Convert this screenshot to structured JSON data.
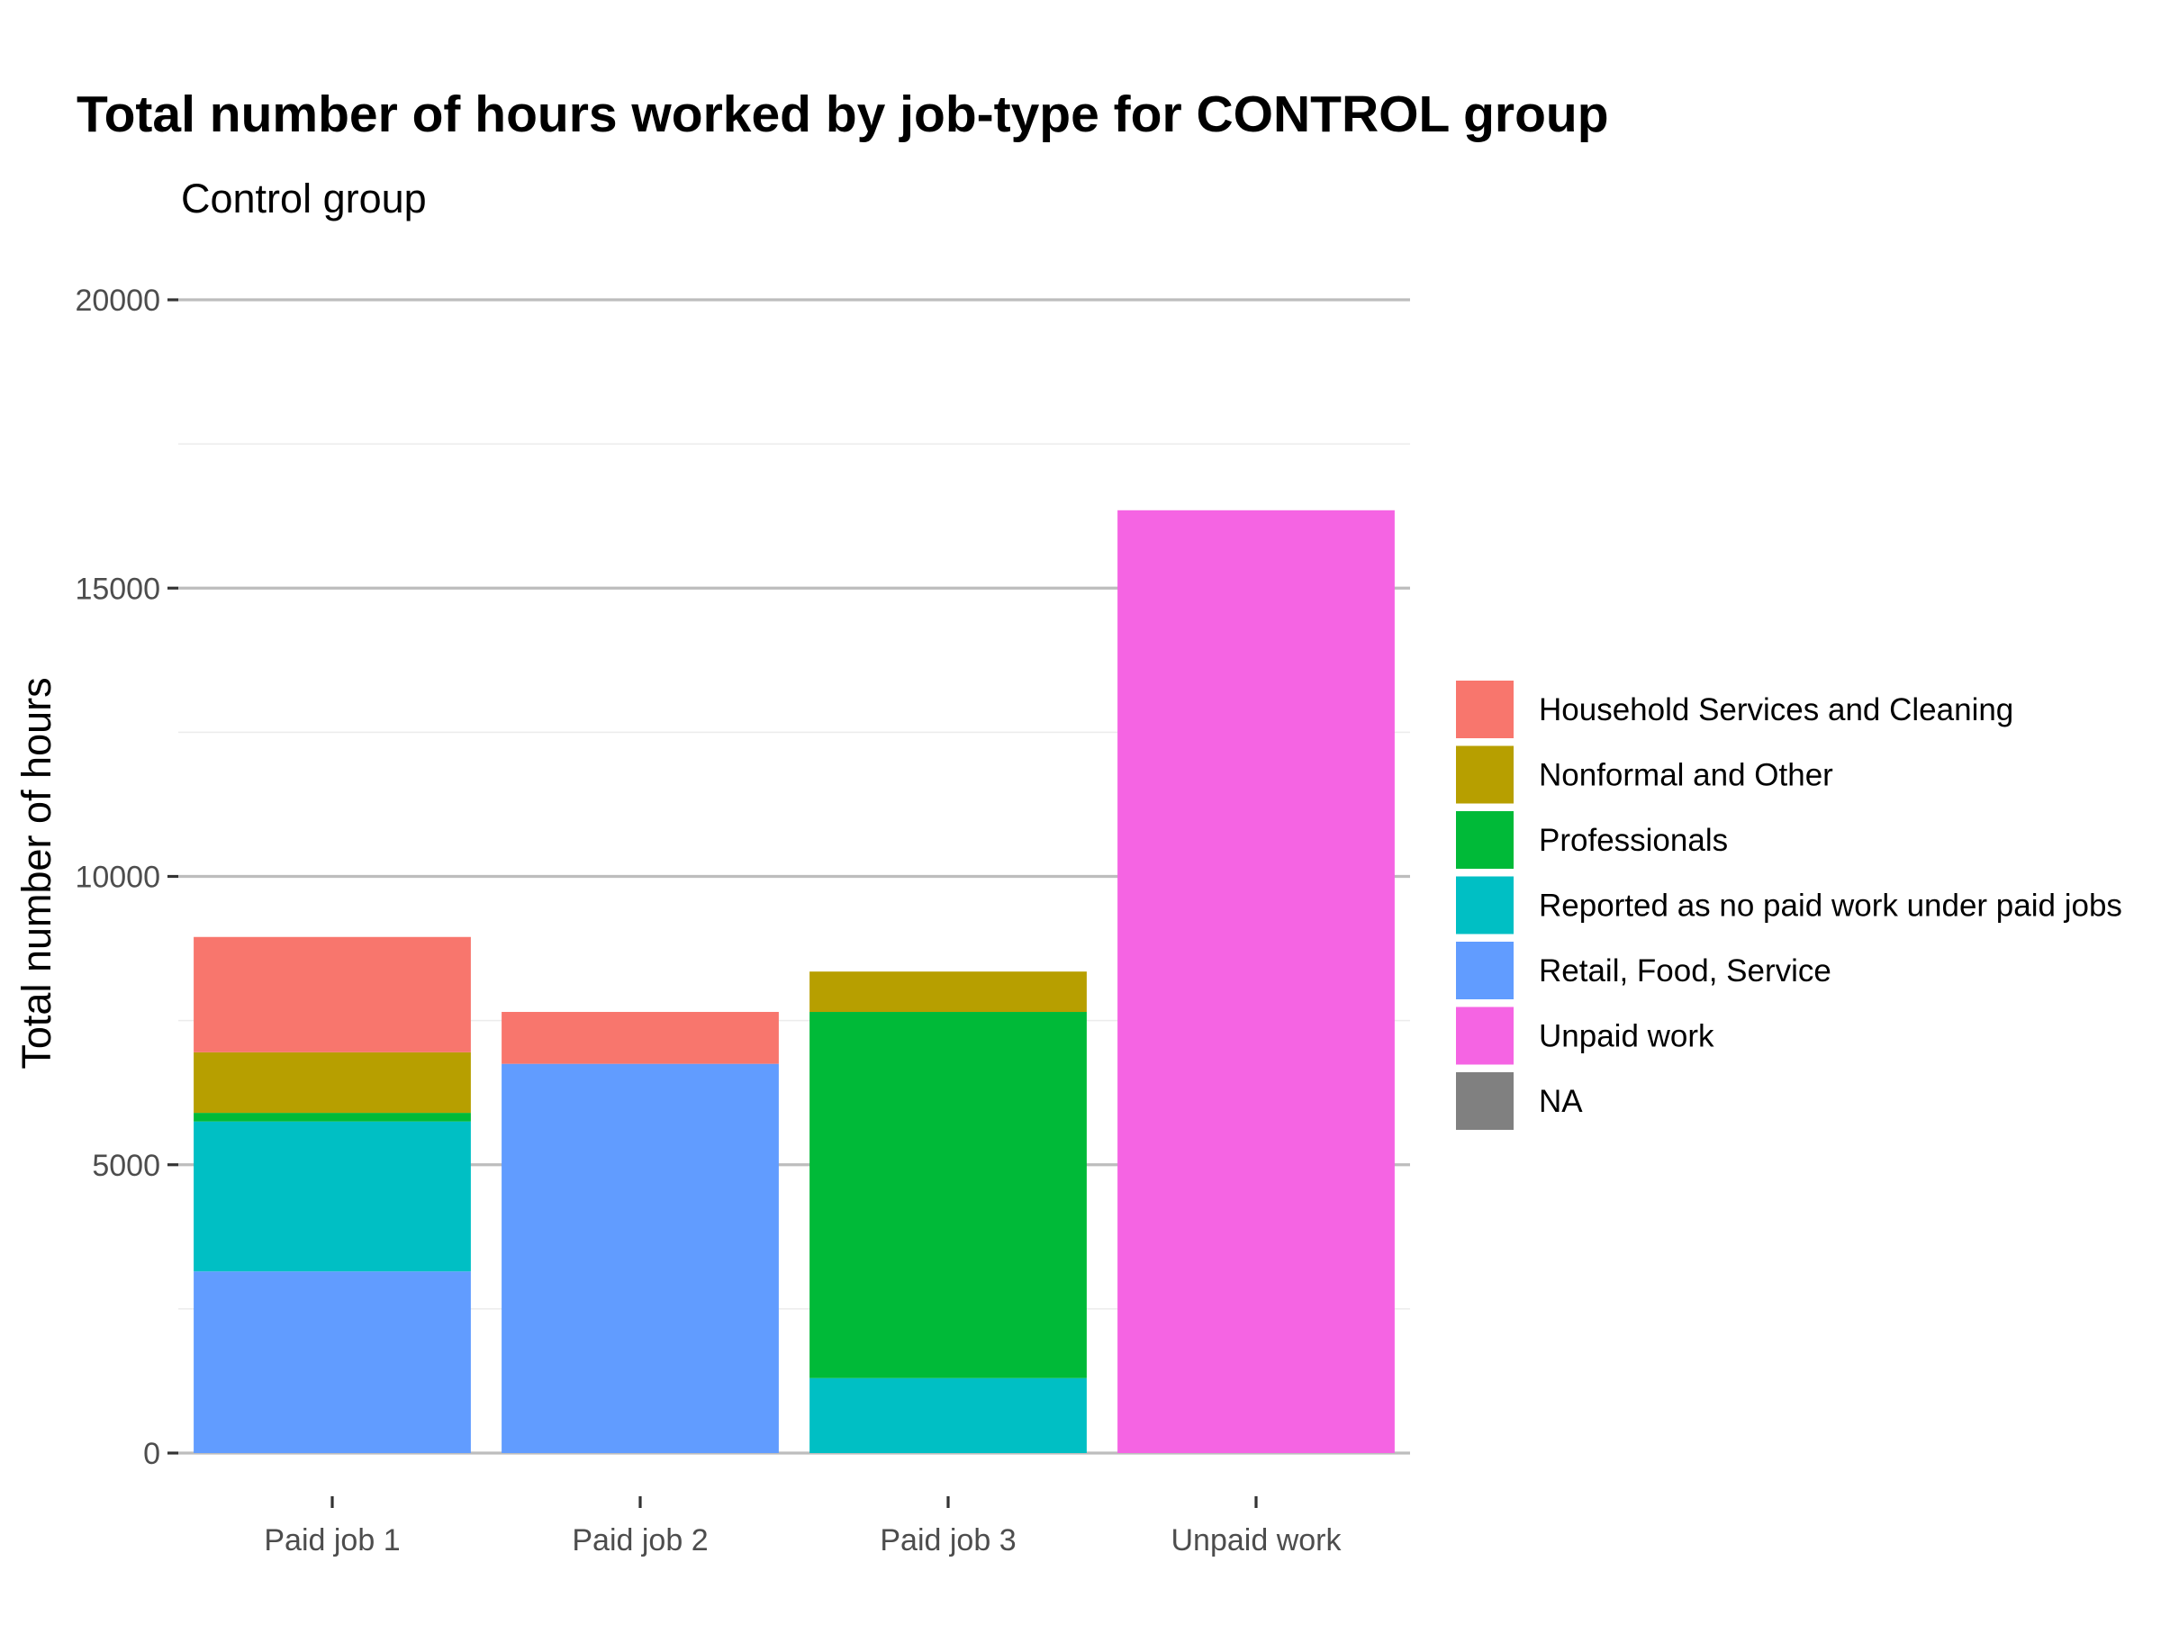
{
  "chart_data": {
    "type": "bar",
    "stacked": true,
    "title": "Total number of hours worked by job-type for CONTROL group",
    "subtitle": "Control group",
    "xlabel": "",
    "ylabel": "Total number of hours",
    "ylim": [
      0,
      20000
    ],
    "yticks": [
      0,
      5000,
      10000,
      15000,
      20000
    ],
    "ytick_labels": [
      "0",
      "5000",
      "10000",
      "15000",
      "20000"
    ],
    "grid": true,
    "legend_position": "right",
    "categories": [
      "Paid job 1",
      "Paid job 2",
      "Paid job 3",
      "Unpaid work"
    ],
    "series": [
      {
        "name": "Retail, Food, Service",
        "color": "#619CFF",
        "values": [
          3150,
          6750,
          0,
          0
        ]
      },
      {
        "name": "Reported as no paid work under paid jobs",
        "color": "#00BFC4",
        "values": [
          2600,
          0,
          1300,
          0
        ]
      },
      {
        "name": "Professionals",
        "color": "#00BA38",
        "values": [
          150,
          0,
          6350,
          0
        ]
      },
      {
        "name": "Nonformal and Other",
        "color": "#B79F00",
        "values": [
          1050,
          0,
          700,
          0
        ]
      },
      {
        "name": "Household Services and Cleaning",
        "color": "#F8766D",
        "values": [
          2000,
          900,
          0,
          0
        ]
      },
      {
        "name": "Unpaid work",
        "color": "#F564E3",
        "values": [
          0,
          0,
          0,
          16350
        ]
      },
      {
        "name": "NA",
        "color": "#808080",
        "values": [
          0,
          0,
          0,
          0
        ]
      }
    ],
    "legend_order": [
      "Household Services and Cleaning",
      "Nonformal and Other",
      "Professionals",
      "Reported as no paid work under paid jobs",
      "Retail, Food, Service",
      "Unpaid work",
      "NA"
    ]
  }
}
